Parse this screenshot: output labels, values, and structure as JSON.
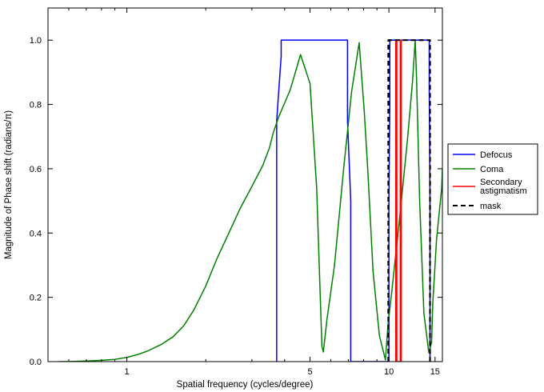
{
  "chart_data": {
    "type": "line",
    "title": "",
    "xlabel": "Spatial frequency (cycles/degree)",
    "ylabel": "Magnitude of Phase shift (radians/π)",
    "xscale": "log",
    "xlim": [
      0.5,
      16
    ],
    "ylim": [
      0.0,
      1.1
    ],
    "xticks": [
      1,
      5,
      10,
      15
    ],
    "xtick_labels": [
      "1",
      "5",
      "10",
      "15"
    ],
    "yticks": [
      0.0,
      0.2,
      0.4,
      0.6,
      0.8,
      1.0
    ],
    "ytick_labels": [
      "0.0",
      "0.2",
      "0.4",
      "0.6",
      "0.8",
      "1.0"
    ],
    "grid": false,
    "legend_position": "outside-right",
    "series": [
      {
        "name": "Defocus",
        "color": "#0000ff",
        "style": "solid",
        "x": [
          3.73,
          3.73,
          3.88,
          3.88,
          6.95,
          6.95,
          7.15,
          7.15,
          10.0,
          10.0,
          10.08,
          10.08,
          14.25,
          14.25,
          14.35,
          14.35
        ],
        "y": [
          0,
          0.75,
          0.95,
          1.0,
          1.0,
          0.75,
          0.5,
          0,
          0,
          0.5,
          0.8,
          1.0,
          1.0,
          0.85,
          0.5,
          0
        ]
      },
      {
        "name": "Coma",
        "color": "#008000",
        "style": "solid",
        "x": [
          0.55,
          0.6,
          0.7,
          0.8,
          0.9,
          1.0,
          1.1,
          1.2,
          1.35,
          1.5,
          1.65,
          1.8,
          2.0,
          2.2,
          2.45,
          2.7,
          3.0,
          3.3,
          3.5,
          3.62,
          3.8,
          4.2,
          4.6,
          5.0,
          5.3,
          5.55,
          5.62,
          5.8,
          6.2,
          6.7,
          7.2,
          7.7,
          8.05,
          8.3,
          8.7,
          9.2,
          9.7,
          9.93,
          10.2,
          11.0,
          11.8,
          12.3,
          12.6,
          12.75,
          13.1,
          13.6,
          14.2,
          14.55,
          14.7,
          15.2,
          15.9,
          16.0
        ],
        "y": [
          0.0,
          0.0,
          0.002,
          0.004,
          0.007,
          0.013,
          0.022,
          0.033,
          0.053,
          0.077,
          0.112,
          0.16,
          0.235,
          0.318,
          0.4,
          0.475,
          0.545,
          0.61,
          0.665,
          0.712,
          0.762,
          0.845,
          0.955,
          0.865,
          0.54,
          0.048,
          0.03,
          0.13,
          0.3,
          0.59,
          0.838,
          0.992,
          0.78,
          0.6,
          0.28,
          0.08,
          0.005,
          0.12,
          0.2,
          0.45,
          0.7,
          0.87,
          1.0,
          0.88,
          0.5,
          0.15,
          0.028,
          0.06,
          0.18,
          0.38,
          0.54,
          0.6
        ]
      },
      {
        "name": "Secondary astigmatism",
        "color": "#ff0000",
        "style": "solid",
        "x": [
          10.62,
          10.62,
          10.72,
          10.72,
          11.05,
          11.05,
          11.15,
          11.15
        ],
        "y": [
          0,
          1.0,
          1.0,
          0,
          0,
          1.0,
          1.0,
          0
        ]
      },
      {
        "name": "mask",
        "color": "#000000",
        "style": "dashed",
        "x": [
          9.95,
          9.95,
          14.35,
          14.35
        ],
        "y": [
          0,
          1.0,
          1.0,
          0
        ]
      }
    ],
    "legend_entries": [
      {
        "lines": [
          "Defocus"
        ],
        "color": "#0000ff",
        "style": "solid"
      },
      {
        "lines": [
          "Coma"
        ],
        "color": "#008000",
        "style": "solid"
      },
      {
        "lines": [
          "Secondary",
          "astigmatism"
        ],
        "color": "#ff0000",
        "style": "solid"
      },
      {
        "lines": [
          "mask"
        ],
        "color": "#000000",
        "style": "dashed"
      }
    ]
  }
}
